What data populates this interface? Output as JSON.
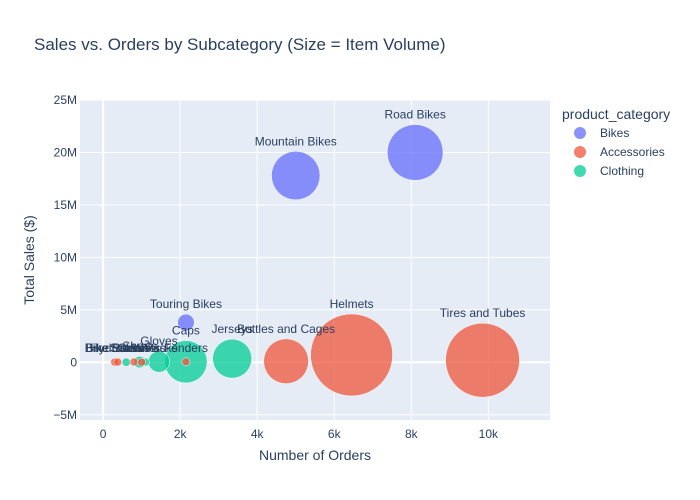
{
  "chart_data": {
    "type": "scatter",
    "title": "Sales vs. Orders by Subcategory (Size = Item Volume)",
    "xlabel": "Number of Orders",
    "ylabel": "Total Sales ($)",
    "xlim": [
      -600,
      11600
    ],
    "ylim": [
      -5500000,
      25000000
    ],
    "x_ticks": [
      0,
      2000,
      4000,
      6000,
      8000,
      10000
    ],
    "x_tick_labels": [
      "0",
      "2k",
      "4k",
      "6k",
      "8k",
      "10k"
    ],
    "y_ticks": [
      -5000000,
      0,
      5000000,
      10000000,
      15000000,
      20000000,
      25000000
    ],
    "y_tick_labels": [
      "−5M",
      "0",
      "5M",
      "10M",
      "15M",
      "20M",
      "25M"
    ],
    "grid": true,
    "legend": {
      "title": "product_category",
      "position": "right"
    },
    "series": [
      {
        "name": "Bikes",
        "color": "#636efa",
        "points": [
          {
            "label": "Road Bikes",
            "x": 8100,
            "y": 20000000,
            "volume": 4500
          },
          {
            "label": "Mountain Bikes",
            "x": 5000,
            "y": 17800000,
            "volume": 3400
          },
          {
            "label": "Touring Bikes",
            "x": 2150,
            "y": 3800000,
            "volume": 400
          }
        ]
      },
      {
        "name": "Accessories",
        "color": "#ef553b",
        "points": [
          {
            "label": "Tires and Tubes",
            "x": 9850,
            "y": 200000,
            "volume": 7900
          },
          {
            "label": "Helmets",
            "x": 6450,
            "y": 700000,
            "volume": 9700
          },
          {
            "label": "Bottles and Cages",
            "x": 4750,
            "y": 100000,
            "volume": 2900
          },
          {
            "label": "Fenders",
            "x": 2150,
            "y": 50000,
            "volume": 90
          },
          {
            "label": "Hydration Packs",
            "x": 800,
            "y": 30000,
            "volume": 60
          },
          {
            "label": "Bike Racks",
            "x": 300,
            "y": 20000,
            "volume": 25
          },
          {
            "label": "Bike Stands",
            "x": 380,
            "y": 20000,
            "volume": 25
          },
          {
            "label": "Cleaners",
            "x": 1000,
            "y": 10000,
            "volume": 70
          }
        ]
      },
      {
        "name": "Clothing",
        "color": "#00cc96",
        "points": [
          {
            "label": "Jerseys",
            "x": 3350,
            "y": 350000,
            "volume": 2200
          },
          {
            "label": "Caps",
            "x": 2150,
            "y": 50000,
            "volume": 2600
          },
          {
            "label": "Gloves",
            "x": 1450,
            "y": 60000,
            "volume": 650
          },
          {
            "label": "Shorts",
            "x": 950,
            "y": 20000,
            "volume": 200
          },
          {
            "label": "Socks",
            "x": 600,
            "y": 10000,
            "volume": 100
          },
          {
            "label": "Vests",
            "x": 1100,
            "y": 20000,
            "volume": 90
          }
        ]
      }
    ]
  }
}
